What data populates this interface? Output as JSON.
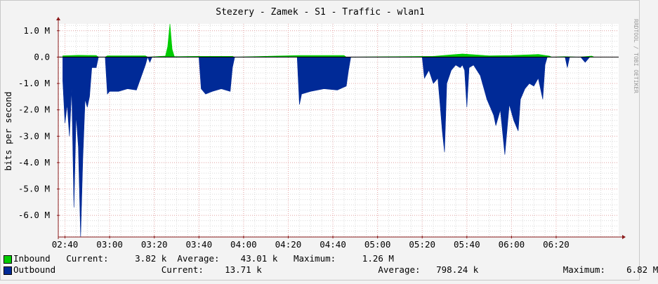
{
  "title": "Stezery - Zamek - S1 - Traffic - wlan1",
  "watermark": "RRDTOOL / TOBI OETIKER",
  "colors": {
    "background": "#f3f3f3",
    "canvas": "#ffffff",
    "inbound": "#00cc00",
    "outbound": "#002a97",
    "grid_major": "#e8a8a8",
    "grid_minor": "#d9d9d9",
    "axis": "#8b1a1a"
  },
  "chart_data": {
    "type": "area",
    "title": "Stezery - Zamek - S1 - Traffic - wlan1",
    "ylabel": "bits per second",
    "ylim": [
      -6.82,
      1.26
    ],
    "y_unit": "M",
    "y_ticks": [
      "1.0 M",
      "0.0",
      "-1.0 M",
      "-2.0 M",
      "-3.0 M",
      "-4.0 M",
      "-5.0 M",
      "-6.0 M"
    ],
    "y_tick_values": [
      1.0,
      0.0,
      -1.0,
      -2.0,
      -3.0,
      -4.0,
      -5.0,
      -6.0
    ],
    "x_ticks": [
      "02:40",
      "03:00",
      "03:20",
      "03:40",
      "04:00",
      "04:20",
      "04:40",
      "05:00",
      "05:20",
      "05:40",
      "06:00",
      "06:20"
    ],
    "x_tick_minutes": [
      0,
      20,
      40,
      60,
      80,
      100,
      120,
      140,
      160,
      180,
      200,
      220
    ],
    "x_range_minutes": [
      -3,
      248
    ],
    "grid": true,
    "series": [
      {
        "name": "Inbound",
        "color": "#00cc00",
        "points": [
          [
            -1,
            0.05
          ],
          [
            6,
            0.07
          ],
          [
            14,
            0.06
          ],
          [
            15,
            0
          ],
          [
            18,
            0
          ],
          [
            19,
            0.05
          ],
          [
            36,
            0.05
          ],
          [
            37,
            0
          ],
          [
            45,
            0.04
          ],
          [
            46,
            0.4
          ],
          [
            47,
            1.26
          ],
          [
            48,
            0.3
          ],
          [
            49,
            0.02
          ],
          [
            60,
            0.03
          ],
          [
            75,
            0.03
          ],
          [
            76,
            0
          ],
          [
            105,
            0.06
          ],
          [
            125,
            0.06
          ],
          [
            126,
            0
          ],
          [
            165,
            0.03
          ],
          [
            172,
            0.08
          ],
          [
            178,
            0.12
          ],
          [
            190,
            0.05
          ],
          [
            200,
            0.06
          ],
          [
            212,
            0.1
          ],
          [
            217,
            0.04
          ],
          [
            218,
            0
          ],
          [
            224,
            0.02
          ],
          [
            230,
            0.0
          ],
          [
            236,
            0.04
          ],
          [
            237,
            0
          ]
        ]
      },
      {
        "name": "Outbound",
        "color": "#002a97",
        "points": [
          [
            -1,
            -0.9
          ],
          [
            0,
            -2.5
          ],
          [
            1,
            -1.8
          ],
          [
            2,
            -3.0
          ],
          [
            3,
            -1.2
          ],
          [
            4,
            -5.7
          ],
          [
            5,
            -2.2
          ],
          [
            6,
            -3.4
          ],
          [
            7,
            -6.82
          ],
          [
            8,
            -3.8
          ],
          [
            9,
            -1.6
          ],
          [
            10,
            -1.9
          ],
          [
            11,
            -1.5
          ],
          [
            12,
            -0.4
          ],
          [
            14,
            -0.4
          ],
          [
            15,
            0
          ],
          [
            18,
            0
          ],
          [
            19,
            -1.4
          ],
          [
            20,
            -1.3
          ],
          [
            24,
            -1.3
          ],
          [
            28,
            -1.2
          ],
          [
            32,
            -1.25
          ],
          [
            36,
            -0.3
          ],
          [
            37,
            0
          ],
          [
            38,
            -0.2
          ],
          [
            39,
            0
          ],
          [
            60,
            0
          ],
          [
            61,
            -1.2
          ],
          [
            63,
            -1.4
          ],
          [
            66,
            -1.3
          ],
          [
            70,
            -1.2
          ],
          [
            74,
            -1.3
          ],
          [
            75,
            -0.4
          ],
          [
            76,
            0
          ],
          [
            104,
            0
          ],
          [
            105,
            -1.8
          ],
          [
            106,
            -1.4
          ],
          [
            110,
            -1.3
          ],
          [
            116,
            -1.2
          ],
          [
            122,
            -1.25
          ],
          [
            126,
            -1.1
          ],
          [
            127,
            -0.5
          ],
          [
            128,
            0
          ],
          [
            160,
            0
          ],
          [
            161,
            -0.8
          ],
          [
            163,
            -0.5
          ],
          [
            165,
            -1.0
          ],
          [
            167,
            -0.8
          ],
          [
            168,
            -1.8
          ],
          [
            169,
            -2.8
          ],
          [
            170,
            -3.6
          ],
          [
            171,
            -1.0
          ],
          [
            173,
            -0.5
          ],
          [
            175,
            -0.3
          ],
          [
            177,
            -0.4
          ],
          [
            178,
            -0.3
          ],
          [
            179,
            -0.5
          ],
          [
            180,
            -1.9
          ],
          [
            181,
            -0.4
          ],
          [
            183,
            -0.3
          ],
          [
            186,
            -0.7
          ],
          [
            189,
            -1.6
          ],
          [
            192,
            -2.2
          ],
          [
            193,
            -2.6
          ],
          [
            195,
            -2.0
          ],
          [
            197,
            -3.7
          ],
          [
            199,
            -1.8
          ],
          [
            201,
            -2.4
          ],
          [
            203,
            -2.8
          ],
          [
            204,
            -1.6
          ],
          [
            206,
            -1.2
          ],
          [
            208,
            -1.0
          ],
          [
            210,
            -1.1
          ],
          [
            212,
            -0.8
          ],
          [
            214,
            -1.6
          ],
          [
            215,
            -0.3
          ],
          [
            216,
            0
          ],
          [
            224,
            0
          ],
          [
            225,
            -0.4
          ],
          [
            226,
            0
          ],
          [
            231,
            0
          ],
          [
            232,
            -0.1
          ],
          [
            233,
            -0.2
          ],
          [
            234,
            -0.1
          ],
          [
            235,
            0
          ]
        ]
      }
    ],
    "legend_placement": "bottom"
  },
  "legend": {
    "inbound": {
      "name": "Inbound",
      "current_label": "Current:",
      "current": "3.82 k",
      "average_label": "Average:",
      "average": "43.01 k",
      "maximum_label": "Maximum:",
      "maximum": "1.26 M"
    },
    "outbound": {
      "name": "Outbound",
      "current_label": "Current:",
      "current": "13.71 k",
      "average_label": "Average:",
      "average": "798.24 k",
      "maximum_label": "Maximum:",
      "maximum": "6.82 M"
    }
  }
}
